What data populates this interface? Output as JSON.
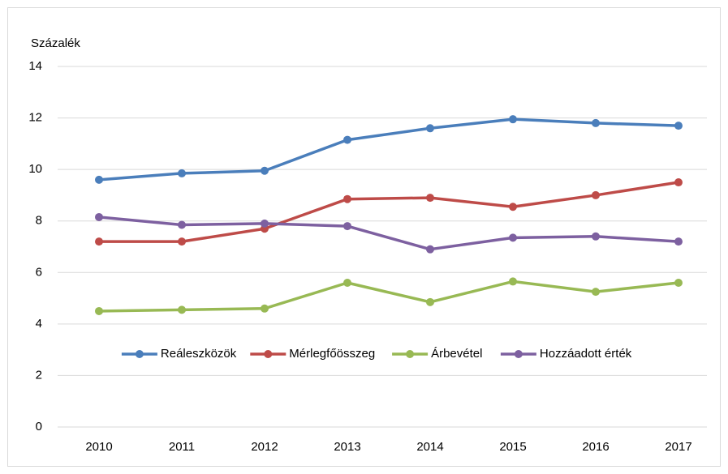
{
  "chart_data": {
    "type": "line",
    "y_label": "Százalék",
    "categories": [
      "2010",
      "2011",
      "2012",
      "2013",
      "2014",
      "2015",
      "2016",
      "2017"
    ],
    "series": [
      {
        "name": "Reáleszközök",
        "color": "#4a7ebb",
        "values": [
          9.6,
          9.85,
          9.95,
          11.15,
          11.6,
          11.95,
          11.8,
          11.7
        ]
      },
      {
        "name": "Mérlegfőösszeg",
        "color": "#be4b48",
        "values": [
          7.2,
          7.2,
          7.7,
          8.85,
          8.9,
          8.55,
          9.0,
          9.5
        ]
      },
      {
        "name": "Árbevétel",
        "color": "#98b954",
        "values": [
          4.5,
          4.55,
          4.6,
          5.6,
          4.85,
          5.65,
          5.25,
          5.6
        ]
      },
      {
        "name": "Hozzáadott érték",
        "color": "#7d60a0",
        "values": [
          8.15,
          7.85,
          7.9,
          7.8,
          6.9,
          7.35,
          7.4,
          7.2
        ]
      }
    ],
    "ylim": [
      0,
      14
    ],
    "yticks": [
      0,
      2,
      4,
      6,
      8,
      10,
      12,
      14
    ],
    "grid": true,
    "legend": "lower center"
  }
}
